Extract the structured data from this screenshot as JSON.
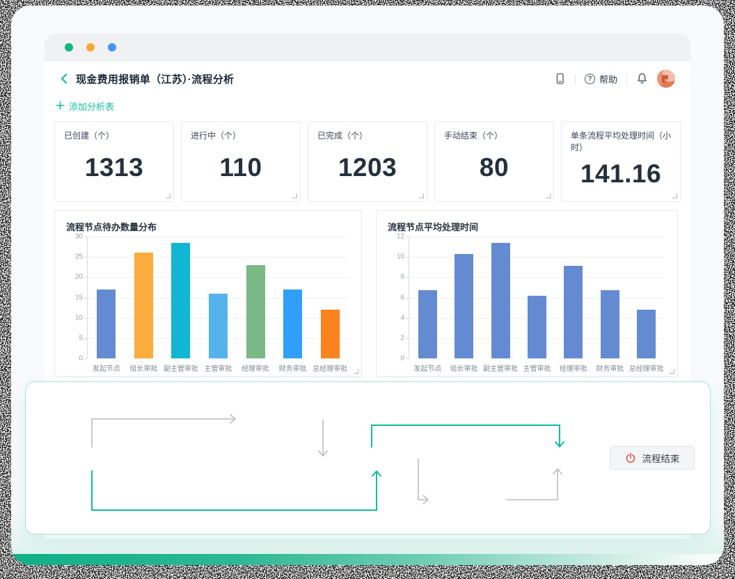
{
  "window": {
    "title": "现金费用报销单（江苏）·流程分析",
    "help_label": "帮助",
    "add_analysis_label": "添加分析表",
    "plus_icon": "＋",
    "traffic_light_colors": [
      "#10ba7d",
      "#faa73c",
      "#4196f6"
    ]
  },
  "stats": [
    {
      "label": "已创建（个）",
      "value": "1313"
    },
    {
      "label": "进行中（个）",
      "value": "110"
    },
    {
      "label": "已完成（个）",
      "value": "1203"
    },
    {
      "label": "手动结束（个）",
      "value": "80"
    },
    {
      "label": "单条流程平均处理时间（小时）",
      "value": "141.16"
    }
  ],
  "chart_data": [
    {
      "type": "bar",
      "title": "流程节点待办数量分布",
      "categories": [
        "发起节点",
        "组长审批",
        "副主管审批",
        "主管审批",
        "经理审批",
        "财务审批",
        "总经理审批"
      ],
      "values": [
        17,
        26,
        28.5,
        16,
        23,
        17,
        12
      ],
      "bar_colors": [
        "#648BD2",
        "#FBAC3C",
        "#12B5D4",
        "#55B2EC",
        "#7AB885",
        "#2F9FF8",
        "#FB821D"
      ],
      "xlabel": "",
      "ylabel": "",
      "ylim": [
        0,
        30
      ],
      "yticks": [
        0,
        5,
        10,
        15,
        20,
        25,
        30
      ],
      "grid": true,
      "legend": "none"
    },
    {
      "type": "bar",
      "title": "流程节点平均处理时间",
      "categories": [
        "发起节点",
        "组长审批",
        "副主管审批",
        "主管审批",
        "经理审批",
        "财务审批",
        "总经理审批"
      ],
      "values": [
        6.7,
        10.3,
        11.4,
        6.2,
        9.1,
        6.7,
        4.8
      ],
      "bar_colors": [
        "#648BD2",
        "#648BD2",
        "#648BD2",
        "#648BD2",
        "#648BD2",
        "#648BD2",
        "#648BD2"
      ],
      "xlabel": "",
      "ylabel": "",
      "ylim": [
        0,
        12
      ],
      "yticks": [
        0,
        2,
        4,
        6,
        8,
        10,
        12
      ],
      "grid": true,
      "legend": "none"
    }
  ],
  "flow": {
    "end_button_label": "流程结束"
  },
  "colors": {
    "accent_teal": "#14bda0",
    "flow_arrow_teal": "#12bd9a",
    "flow_arrow_gray": "#bcbcbc",
    "stat_value": "#25303c",
    "power_icon_red": "#e25a50"
  }
}
